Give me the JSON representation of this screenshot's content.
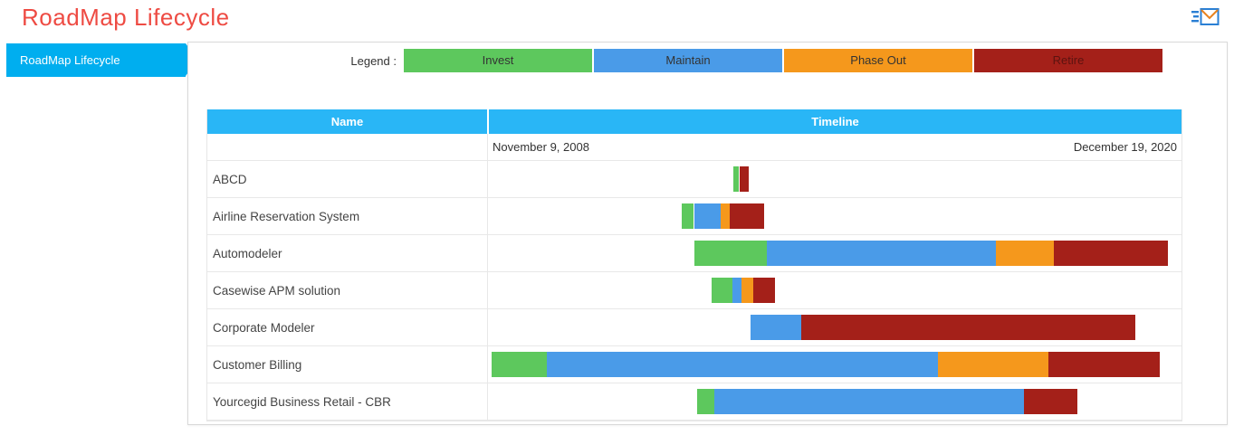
{
  "header": {
    "title": "RoadMap Lifecycle"
  },
  "sidebar": {
    "items": [
      {
        "label": "RoadMap Lifecycle"
      }
    ]
  },
  "legend": {
    "label": "Legend :",
    "items": [
      {
        "label": "Invest",
        "color": "#5dc85d",
        "text_color": "#333333"
      },
      {
        "label": "Maintain",
        "color": "#4a9be8",
        "text_color": "#333333"
      },
      {
        "label": "Phase Out",
        "color": "#f5981c",
        "text_color": "#333333"
      },
      {
        "label": "Retire",
        "color": "#a42019",
        "text_color": "#5c1310"
      }
    ]
  },
  "table": {
    "columns": [
      "Name",
      "Timeline"
    ],
    "timeline_start": "November 9, 2008",
    "timeline_end": "December 19, 2020"
  },
  "chart_data": {
    "type": "gantt",
    "title": "RoadMap Lifecycle",
    "x_range": [
      "November 9, 2008",
      "December 19, 2020"
    ],
    "units": "percent of timeline span",
    "phases": [
      "Invest",
      "Maintain",
      "Phase Out",
      "Retire"
    ],
    "rows": [
      {
        "name": "ABCD",
        "segments": [
          {
            "phase": "Invest",
            "start_pct": 35.4,
            "end_pct": 36.1
          },
          {
            "phase": "Retire",
            "start_pct": 36.3,
            "end_pct": 37.6
          }
        ]
      },
      {
        "name": "Airline Reservation System",
        "segments": [
          {
            "phase": "Invest",
            "start_pct": 28.0,
            "end_pct": 29.7
          },
          {
            "phase": "Maintain",
            "start_pct": 29.7,
            "end_pct": 33.6
          },
          {
            "phase": "Phase Out",
            "start_pct": 33.6,
            "end_pct": 34.9
          },
          {
            "phase": "Retire",
            "start_pct": 34.9,
            "end_pct": 39.8
          }
        ]
      },
      {
        "name": "Automodeler",
        "segments": [
          {
            "phase": "Invest",
            "start_pct": 29.7,
            "end_pct": 40.2
          },
          {
            "phase": "Maintain",
            "start_pct": 40.2,
            "end_pct": 73.3
          },
          {
            "phase": "Phase Out",
            "start_pct": 73.3,
            "end_pct": 81.6
          },
          {
            "phase": "Retire",
            "start_pct": 81.6,
            "end_pct": 98.0
          }
        ]
      },
      {
        "name": "Casewise APM solution",
        "segments": [
          {
            "phase": "Invest",
            "start_pct": 32.3,
            "end_pct": 35.2
          },
          {
            "phase": "Maintain",
            "start_pct": 35.2,
            "end_pct": 36.5
          },
          {
            "phase": "Phase Out",
            "start_pct": 36.5,
            "end_pct": 38.2
          },
          {
            "phase": "Retire",
            "start_pct": 38.2,
            "end_pct": 41.4
          }
        ]
      },
      {
        "name": "Corporate Modeler",
        "segments": [
          {
            "phase": "Maintain",
            "start_pct": 37.8,
            "end_pct": 45.2
          },
          {
            "phase": "Retire",
            "start_pct": 45.2,
            "end_pct": 93.4
          }
        ]
      },
      {
        "name": "Customer Billing",
        "segments": [
          {
            "phase": "Invest",
            "start_pct": 0.5,
            "end_pct": 8.5
          },
          {
            "phase": "Maintain",
            "start_pct": 8.5,
            "end_pct": 64.9
          },
          {
            "phase": "Phase Out",
            "start_pct": 64.9,
            "end_pct": 80.8
          },
          {
            "phase": "Retire",
            "start_pct": 80.8,
            "end_pct": 96.9
          }
        ]
      },
      {
        "name": "Yourcegid Business Retail - CBR",
        "segments": [
          {
            "phase": "Invest",
            "start_pct": 30.1,
            "end_pct": 32.7
          },
          {
            "phase": "Maintain",
            "start_pct": 32.7,
            "end_pct": 77.3
          },
          {
            "phase": "Retire",
            "start_pct": 77.3,
            "end_pct": 85.0
          }
        ]
      }
    ]
  }
}
